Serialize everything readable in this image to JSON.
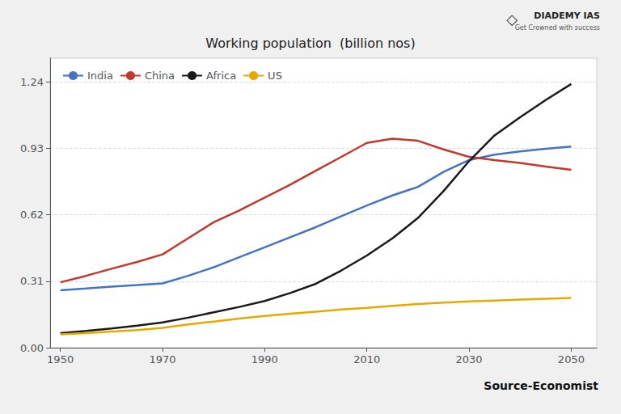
{
  "chart_data": {
    "type": "line",
    "title": "Working population  (billion nos)",
    "x": [
      1950,
      1955,
      1960,
      1965,
      1970,
      1975,
      1980,
      1985,
      1990,
      1995,
      2000,
      2005,
      2010,
      2015,
      2020,
      2025,
      2030,
      2035,
      2040,
      2045,
      2050
    ],
    "series": [
      {
        "name": "India",
        "color": "#4472c4",
        "values": [
          0.268,
          0.276,
          0.285,
          0.292,
          0.3,
          0.335,
          0.375,
          0.422,
          0.468,
          0.515,
          0.562,
          0.613,
          0.663,
          0.71,
          0.75,
          0.82,
          0.875,
          0.9,
          0.915,
          0.928,
          0.938
        ]
      },
      {
        "name": "China",
        "color": "#c0392b",
        "values": [
          0.305,
          0.335,
          0.368,
          0.4,
          0.435,
          0.51,
          0.585,
          0.64,
          0.7,
          0.76,
          0.825,
          0.89,
          0.955,
          0.975,
          0.965,
          0.925,
          0.89,
          0.875,
          0.862,
          0.845,
          0.83
        ]
      },
      {
        "name": "Africa",
        "color": "#1a1a1a",
        "values": [
          0.068,
          0.078,
          0.09,
          0.103,
          0.118,
          0.14,
          0.165,
          0.19,
          0.218,
          0.255,
          0.298,
          0.36,
          0.43,
          0.51,
          0.605,
          0.73,
          0.87,
          0.99,
          1.075,
          1.155,
          1.23
        ]
      },
      {
        "name": "US",
        "color": "#e6a800",
        "values": [
          0.062,
          0.068,
          0.075,
          0.082,
          0.092,
          0.108,
          0.122,
          0.136,
          0.148,
          0.158,
          0.168,
          0.178,
          0.186,
          0.195,
          0.204,
          0.21,
          0.216,
          0.22,
          0.224,
          0.228,
          0.232
        ]
      }
    ],
    "xlim": [
      1948,
      2055
    ],
    "xticks": [
      1950,
      1970,
      1990,
      2010,
      2030,
      2050
    ],
    "ylim": [
      0.0,
      1.35
    ],
    "yticks": [
      {
        "value": 0,
        "label": "0.00"
      },
      0.31,
      0.62,
      0.93,
      1.24
    ],
    "grid": true,
    "legend": "upper left",
    "annotations": [
      "Source-Economist",
      "◇",
      "DIADEMY IAS",
      "Get Crowned with success"
    ]
  }
}
